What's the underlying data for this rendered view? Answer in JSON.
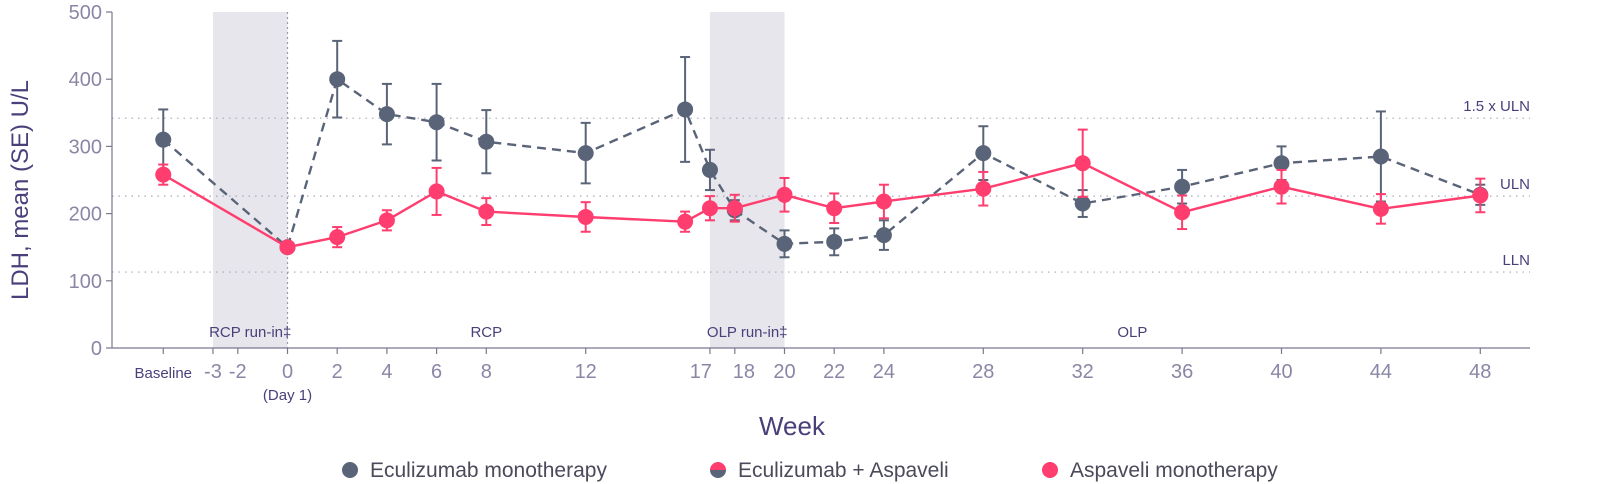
{
  "chart_data": {
    "type": "line",
    "ylabel": "LDH, mean (SE) U/L",
    "xlabel": "Week",
    "ylim": [
      0,
      500
    ],
    "yticks": [
      0,
      100,
      200,
      300,
      400,
      500
    ],
    "xticks": [
      {
        "label": "Baseline",
        "x": -5
      },
      {
        "label": "-3",
        "x": -3
      },
      {
        "label": "-2",
        "x": -2
      },
      {
        "label": "0",
        "x": 0
      },
      {
        "label": "2",
        "x": 2
      },
      {
        "label": "4",
        "x": 4
      },
      {
        "label": "6",
        "x": 6
      },
      {
        "label": "8",
        "x": 8
      },
      {
        "label": "12",
        "x": 12
      },
      {
        "label": "17",
        "x": 17
      },
      {
        "label": "18",
        "x": 18
      },
      {
        "label": "20",
        "x": 20
      },
      {
        "label": "22",
        "x": 22
      },
      {
        "label": "24",
        "x": 24
      },
      {
        "label": "28",
        "x": 28
      },
      {
        "label": "32",
        "x": 32
      },
      {
        "label": "36",
        "x": 36
      },
      {
        "label": "40",
        "x": 40
      },
      {
        "label": "44",
        "x": 44
      },
      {
        "label": "48",
        "x": 48
      }
    ],
    "day1_label": "(Day 1)",
    "shaded_periods": [
      [
        -3,
        0
      ],
      [
        17,
        20
      ]
    ],
    "period_labels": [
      {
        "label": "RCP run-in‡",
        "x": -1.5
      },
      {
        "label": "RCP",
        "x": 8
      },
      {
        "label": "OLP run-in‡",
        "x": 18.5
      },
      {
        "label": "OLP",
        "x": 34
      }
    ],
    "reference_lines": [
      {
        "name": "1.5 x ULN",
        "y": 342
      },
      {
        "name": "ULN",
        "y": 226
      },
      {
        "name": "LLN",
        "y": 113
      }
    ],
    "series": [
      {
        "name": "Eculizumab monotherapy",
        "color": "#5a6478",
        "style": "dashed",
        "points": [
          {
            "x": -5,
            "y": 310,
            "err": 45
          },
          {
            "x": 0,
            "y": 150,
            "err": 0
          },
          {
            "x": 2,
            "y": 400,
            "err": 57
          },
          {
            "x": 4,
            "y": 348,
            "err": 45
          },
          {
            "x": 6,
            "y": 336,
            "err": 57
          },
          {
            "x": 8,
            "y": 307,
            "err": 47
          },
          {
            "x": 12,
            "y": 290,
            "err": 45
          },
          {
            "x": 16,
            "y": 355,
            "err": 78
          },
          {
            "x": 17,
            "y": 265,
            "err": 30
          },
          {
            "x": 18,
            "y": 205,
            "err": 15
          },
          {
            "x": 20,
            "y": 155,
            "err": 20
          },
          {
            "x": 22,
            "y": 158,
            "err": 20
          },
          {
            "x": 24,
            "y": 168,
            "err": 22
          },
          {
            "x": 28,
            "y": 290,
            "err": 40
          },
          {
            "x": 32,
            "y": 215,
            "err": 20
          },
          {
            "x": 36,
            "y": 240,
            "err": 25
          },
          {
            "x": 40,
            "y": 275,
            "err": 25
          },
          {
            "x": 44,
            "y": 285,
            "err": 67
          },
          {
            "x": 48,
            "y": 228,
            "err": 15
          }
        ]
      },
      {
        "name": "Eculizumab + Aspaveli",
        "color": "#ff3d6e",
        "style": "solid",
        "points": [
          {
            "x": -5,
            "y": 258,
            "err": 15
          },
          {
            "x": 0,
            "y": 150,
            "err": 5
          },
          {
            "x": 2,
            "y": 165,
            "err": 15
          },
          {
            "x": 4,
            "y": 190,
            "err": 15
          },
          {
            "x": 6,
            "y": 233,
            "err": 35
          },
          {
            "x": 8,
            "y": 203,
            "err": 20
          },
          {
            "x": 12,
            "y": 195,
            "err": 22
          },
          {
            "x": 16,
            "y": 188,
            "err": 15
          },
          {
            "x": 17,
            "y": 208,
            "err": 18
          },
          {
            "x": 18,
            "y": 208,
            "err": 20
          },
          {
            "x": 20,
            "y": 228,
            "err": 25
          },
          {
            "x": 22,
            "y": 208,
            "err": 22
          },
          {
            "x": 24,
            "y": 218,
            "err": 25
          },
          {
            "x": 28,
            "y": 237,
            "err": 25
          },
          {
            "x": 32,
            "y": 275,
            "err": 50
          },
          {
            "x": 36,
            "y": 202,
            "err": 25
          },
          {
            "x": 40,
            "y": 240,
            "err": 25
          },
          {
            "x": 44,
            "y": 207,
            "err": 22
          },
          {
            "x": 48,
            "y": 227,
            "err": 25
          }
        ]
      }
    ],
    "legend": [
      {
        "label": "Eculizumab monotherapy",
        "marker": "gray"
      },
      {
        "label": "Eculizumab + Aspaveli",
        "marker": "half"
      },
      {
        "label": "Aspaveli monotherapy",
        "marker": "pink"
      }
    ],
    "grid": false,
    "legend_position": "bottom"
  }
}
